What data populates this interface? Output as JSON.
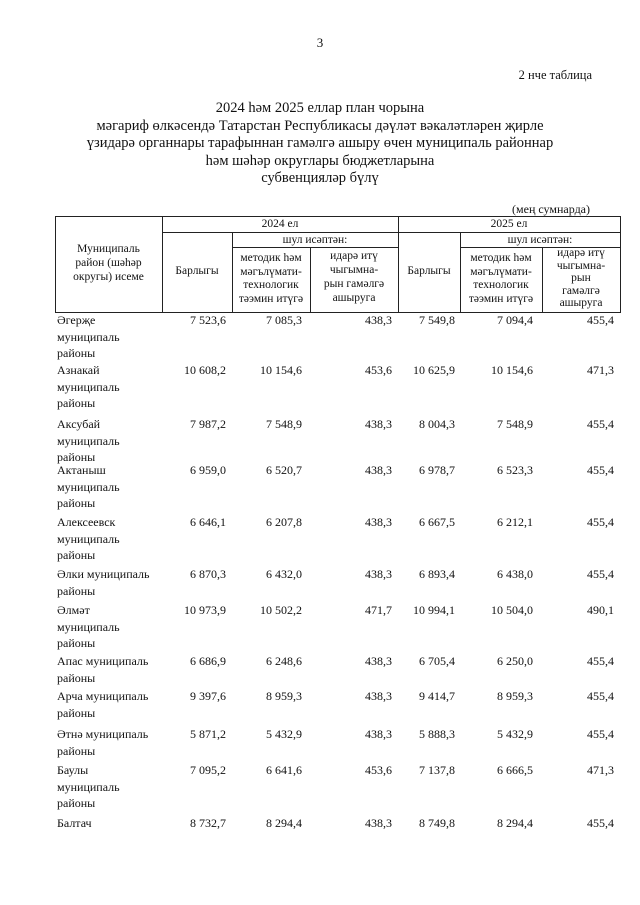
{
  "page_number": "3",
  "table_label": "2 нче таблица",
  "title_lines": [
    "2024 һәм 2025 еллар план чорына",
    "мәгариф өлкәсендә Татарстан Республикасы дәүләт вәкаләтләрен җирле",
    "үзидарә органнары тарафыннан гамәлгә ашыру өчен муниципаль районнар",
    "һәм шәһәр округлары бюджетларына",
    "субвенцияләр бүлү"
  ],
  "units": "(мең сумнарда)",
  "table": {
    "header": {
      "name_lines": [
        "Муниципаль",
        "район (шәһәр",
        "округы) исеме"
      ],
      "years": [
        "2024 ел",
        "2025 ел"
      ],
      "total": "Барлыгы",
      "including": "шул исәптән:",
      "method_lines": [
        "методик һәм",
        "мәгълүмати-",
        "технологик",
        "тәэмин итүгә"
      ],
      "admin_lines_2024": [
        "идарә итү",
        "чыгымна-",
        "рын гамәлгә",
        "ашыруга"
      ],
      "admin_lines_2025": [
        "идарә итү",
        "чыгымна-",
        "рын",
        "гамәлгә",
        "ашыруга"
      ]
    },
    "rows": [
      {
        "name_lines": [
          "Әгерҗе",
          "муниципаль",
          "районы"
        ],
        "values": [
          "7 523,6",
          "7 085,3",
          "438,3",
          "7 549,8",
          "7 094,4",
          "455,4"
        ]
      },
      {
        "name_lines": [
          "Азнакай",
          "муниципаль",
          "районы"
        ],
        "values": [
          "10 608,2",
          "10 154,6",
          "453,6",
          "10 625,9",
          "10 154,6",
          "471,3"
        ]
      },
      {
        "name_lines": [
          "Аксубай",
          "муниципаль",
          "районы"
        ],
        "values": [
          "7 987,2",
          "7 548,9",
          "438,3",
          "8 004,3",
          "7 548,9",
          "455,4"
        ]
      },
      {
        "name_lines": [
          "Актаныш",
          "муниципаль",
          "районы"
        ],
        "values": [
          "6 959,0",
          "6 520,7",
          "438,3",
          "6 978,7",
          "6 523,3",
          "455,4"
        ]
      },
      {
        "name_lines": [
          "Алексеевск",
          "муниципаль",
          "районы"
        ],
        "values": [
          "6 646,1",
          "6 207,8",
          "438,3",
          "6 667,5",
          "6 212,1",
          "455,4"
        ]
      },
      {
        "name_lines": [
          "Әлки муниципаль",
          "районы"
        ],
        "values": [
          "6 870,3",
          "6 432,0",
          "438,3",
          "6 893,4",
          "6 438,0",
          "455,4"
        ]
      },
      {
        "name_lines": [
          "Әлмәт",
          "муниципаль",
          "районы"
        ],
        "values": [
          "10 973,9",
          "10 502,2",
          "471,7",
          "10 994,1",
          "10 504,0",
          "490,1"
        ]
      },
      {
        "name_lines": [
          "Апас муниципаль",
          "районы"
        ],
        "values": [
          "6 686,9",
          "6 248,6",
          "438,3",
          "6 705,4",
          "6 250,0",
          "455,4"
        ]
      },
      {
        "name_lines": [
          "Арча муниципаль",
          "районы"
        ],
        "values": [
          "9 397,6",
          "8 959,3",
          "438,3",
          "9 414,7",
          "8 959,3",
          "455,4"
        ]
      },
      {
        "name_lines": [
          "Әтнә муниципаль",
          "районы"
        ],
        "values": [
          "5 871,2",
          "5 432,9",
          "438,3",
          "5 888,3",
          "5 432,9",
          "455,4"
        ]
      },
      {
        "name_lines": [
          "Баулы",
          "муниципаль",
          "районы"
        ],
        "values": [
          "7 095,2",
          "6 641,6",
          "453,6",
          "7 137,8",
          "6 666,5",
          "471,3"
        ]
      },
      {
        "name_lines": [
          "Балтач"
        ],
        "values": [
          "8 732,7",
          "8 294,4",
          "438,3",
          "8 749,8",
          "8 294,4",
          "455,4"
        ]
      }
    ]
  }
}
